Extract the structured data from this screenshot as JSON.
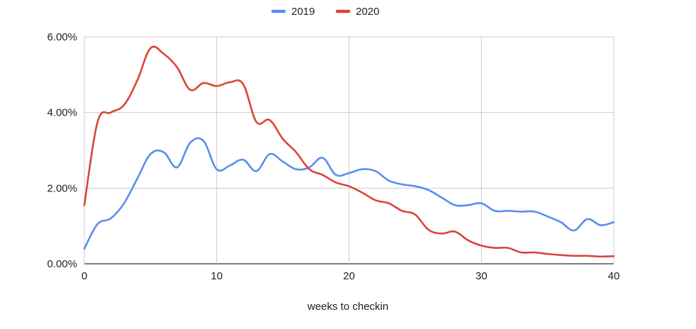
{
  "chart_data": {
    "type": "line",
    "title": "",
    "xlabel": "weeks to checkin",
    "ylabel": "",
    "xlim": [
      0,
      40
    ],
    "ylim": [
      0,
      6
    ],
    "x_ticks": [
      0,
      10,
      20,
      30,
      40
    ],
    "y_ticks": [
      0,
      2,
      4,
      6
    ],
    "y_tick_labels": [
      "0.00%",
      "2.00%",
      "4.00%",
      "6.00%"
    ],
    "grid": true,
    "legend_position": "top-center",
    "series": [
      {
        "name": "2019",
        "color": "#5b8def",
        "x": [
          0,
          1,
          2,
          3,
          4,
          5,
          6,
          7,
          8,
          9,
          10,
          11,
          12,
          13,
          14,
          15,
          16,
          17,
          18,
          19,
          20,
          21,
          22,
          23,
          24,
          25,
          26,
          27,
          28,
          29,
          30,
          31,
          32,
          33,
          34,
          35,
          36,
          37,
          38,
          39,
          40
        ],
        "values": [
          0.4,
          1.05,
          1.2,
          1.6,
          2.25,
          2.9,
          2.95,
          2.55,
          3.2,
          3.25,
          2.5,
          2.6,
          2.75,
          2.45,
          2.9,
          2.7,
          2.5,
          2.55,
          2.8,
          2.35,
          2.4,
          2.5,
          2.45,
          2.2,
          2.1,
          2.05,
          1.95,
          1.75,
          1.55,
          1.55,
          1.6,
          1.4,
          1.4,
          1.38,
          1.38,
          1.25,
          1.1,
          0.88,
          1.18,
          1.02,
          1.1
        ]
      },
      {
        "name": "2020",
        "color": "#db4437",
        "x": [
          0,
          1,
          2,
          3,
          4,
          5,
          6,
          7,
          8,
          9,
          10,
          11,
          12,
          13,
          14,
          15,
          16,
          17,
          18,
          19,
          20,
          21,
          22,
          23,
          24,
          25,
          26,
          27,
          28,
          29,
          30,
          31,
          32,
          33,
          34,
          35,
          36,
          37,
          38,
          39,
          40
        ],
        "values": [
          1.55,
          3.75,
          4.0,
          4.2,
          4.85,
          5.7,
          5.55,
          5.2,
          4.6,
          4.78,
          4.7,
          4.8,
          4.75,
          3.75,
          3.8,
          3.3,
          2.95,
          2.5,
          2.35,
          2.15,
          2.05,
          1.88,
          1.68,
          1.6,
          1.4,
          1.3,
          0.9,
          0.8,
          0.85,
          0.62,
          0.48,
          0.42,
          0.42,
          0.3,
          0.3,
          0.26,
          0.23,
          0.21,
          0.21,
          0.19,
          0.2
        ]
      }
    ]
  }
}
